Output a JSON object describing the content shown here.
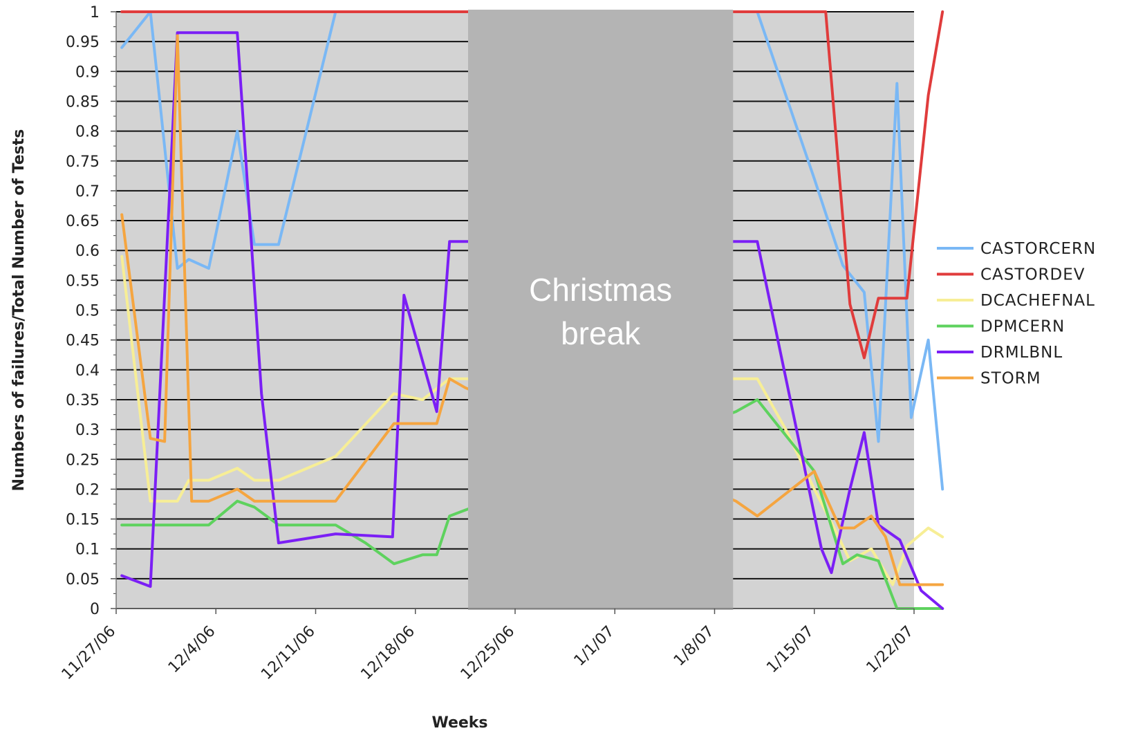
{
  "chart_data": {
    "type": "line",
    "title": "",
    "xlabel": "Weeks",
    "ylabel": "Numbers of failures/Total Number of Tests",
    "ylim": [
      0,
      1
    ],
    "yticks": [
      "0",
      "0.05",
      "0.1",
      "0.15",
      "0.2",
      "0.25",
      "0.3",
      "0.35",
      "0.4",
      "0.45",
      "0.5",
      "0.55",
      "0.6",
      "0.65",
      "0.7",
      "0.75",
      "0.8",
      "0.85",
      "0.9",
      "0.95",
      "1"
    ],
    "x_tick_labels": [
      "11/27/06",
      "12/4/06",
      "12/11/06",
      "12/18/06",
      "12/25/06",
      "1/1/07",
      "1/8/07",
      "1/15/07",
      "1/22/07"
    ],
    "xlim": [
      0,
      56
    ],
    "x_units": "days since 11/27/06",
    "annotation": {
      "lines": [
        "Christmas",
        "break"
      ],
      "x_range": [
        24.7,
        43.3
      ]
    },
    "grid": true,
    "legend_position": "right",
    "series": [
      {
        "name": "CASTORCERN",
        "color": "#7ab8f5",
        "points": [
          [
            0.4,
            0.94
          ],
          [
            2.4,
            1.0
          ],
          [
            4.3,
            0.57
          ],
          [
            5.1,
            0.585
          ],
          [
            6.5,
            0.57
          ],
          [
            8.5,
            0.8
          ],
          [
            9.7,
            0.61
          ],
          [
            11.4,
            0.61
          ],
          [
            15.4,
            1.0
          ],
          [
            24.5,
            1.0
          ],
          [
            45,
            1.0
          ],
          [
            49,
            0.72
          ],
          [
            51,
            0.575
          ],
          [
            52.5,
            0.53
          ],
          [
            53.5,
            0.28
          ],
          [
            54.8,
            0.88
          ],
          [
            55.8,
            0.32
          ],
          [
            57,
            0.45
          ],
          [
            58,
            0.2
          ]
        ]
      },
      {
        "name": "CASTORDEV",
        "color": "#e03c3c",
        "points": [
          [
            0.4,
            1.0
          ],
          [
            24.5,
            1.0
          ],
          [
            43.5,
            1.0
          ],
          [
            49.8,
            1.0
          ],
          [
            51.5,
            0.51
          ],
          [
            52.5,
            0.42
          ],
          [
            53.5,
            0.52
          ],
          [
            55.5,
            0.52
          ],
          [
            57,
            0.86
          ],
          [
            58,
            1.0
          ]
        ]
      },
      {
        "name": "DCACHEFNAL",
        "color": "#f7ee96",
        "points": [
          [
            0.4,
            0.59
          ],
          [
            2.4,
            0.18
          ],
          [
            4.3,
            0.18
          ],
          [
            5.1,
            0.215
          ],
          [
            6.5,
            0.215
          ],
          [
            8.5,
            0.235
          ],
          [
            9.7,
            0.215
          ],
          [
            11.4,
            0.215
          ],
          [
            15.4,
            0.255
          ],
          [
            19.5,
            0.36
          ],
          [
            21.5,
            0.35
          ],
          [
            23.4,
            0.385
          ],
          [
            24.5,
            0.385
          ],
          [
            43.5,
            0.385
          ],
          [
            45,
            0.385
          ],
          [
            47,
            0.3
          ],
          [
            49,
            0.2
          ],
          [
            50.5,
            0.13
          ],
          [
            51.5,
            0.08
          ],
          [
            53,
            0.1
          ],
          [
            54.5,
            0.04
          ],
          [
            55.5,
            0.105
          ],
          [
            57,
            0.135
          ],
          [
            58,
            0.12
          ]
        ]
      },
      {
        "name": "DPMCERN",
        "color": "#5ed25e",
        "points": [
          [
            0.4,
            0.14
          ],
          [
            4.3,
            0.14
          ],
          [
            6.5,
            0.14
          ],
          [
            8.5,
            0.18
          ],
          [
            9.7,
            0.17
          ],
          [
            11.4,
            0.14
          ],
          [
            15.4,
            0.14
          ],
          [
            17.5,
            0.11
          ],
          [
            19.5,
            0.075
          ],
          [
            21.5,
            0.09
          ],
          [
            22.5,
            0.09
          ],
          [
            23.4,
            0.155
          ],
          [
            24.5,
            0.165
          ],
          [
            43.5,
            0.33
          ],
          [
            45,
            0.35
          ],
          [
            49,
            0.23
          ],
          [
            51,
            0.075
          ],
          [
            52,
            0.09
          ],
          [
            53.5,
            0.08
          ],
          [
            54.8,
            0.0
          ],
          [
            56,
            0.0
          ],
          [
            58,
            0.0
          ]
        ]
      },
      {
        "name": "DRMLBNL",
        "color": "#7b1ff5",
        "points": [
          [
            0.4,
            0.055
          ],
          [
            2.4,
            0.037
          ],
          [
            4.3,
            0.965
          ],
          [
            5.1,
            0.965
          ],
          [
            8.5,
            0.965
          ],
          [
            10.2,
            0.36
          ],
          [
            11.4,
            0.11
          ],
          [
            15.4,
            0.125
          ],
          [
            19.4,
            0.12
          ],
          [
            20.2,
            0.525
          ],
          [
            22.5,
            0.33
          ],
          [
            23.4,
            0.615
          ],
          [
            24.5,
            0.615
          ],
          [
            43.5,
            0.615
          ],
          [
            45,
            0.615
          ],
          [
            49.5,
            0.1
          ],
          [
            50.2,
            0.06
          ],
          [
            51.5,
            0.2
          ],
          [
            52.5,
            0.295
          ],
          [
            53.5,
            0.14
          ],
          [
            55,
            0.115
          ],
          [
            56.5,
            0.03
          ],
          [
            58,
            0.0
          ]
        ]
      },
      {
        "name": "STORM",
        "color": "#f5a540",
        "points": [
          [
            0.4,
            0.66
          ],
          [
            2.4,
            0.285
          ],
          [
            3.4,
            0.28
          ],
          [
            4.3,
            0.96
          ],
          [
            5.3,
            0.18
          ],
          [
            6.5,
            0.18
          ],
          [
            8.5,
            0.2
          ],
          [
            9.7,
            0.18
          ],
          [
            15.4,
            0.18
          ],
          [
            19.5,
            0.31
          ],
          [
            22.5,
            0.31
          ],
          [
            23.4,
            0.385
          ],
          [
            24.5,
            0.37
          ],
          [
            43.5,
            0.18
          ],
          [
            45,
            0.155
          ],
          [
            49,
            0.23
          ],
          [
            50.8,
            0.135
          ],
          [
            51.8,
            0.135
          ],
          [
            53,
            0.155
          ],
          [
            54,
            0.12
          ],
          [
            55,
            0.04
          ],
          [
            56,
            0.04
          ],
          [
            58,
            0.04
          ]
        ]
      }
    ]
  }
}
